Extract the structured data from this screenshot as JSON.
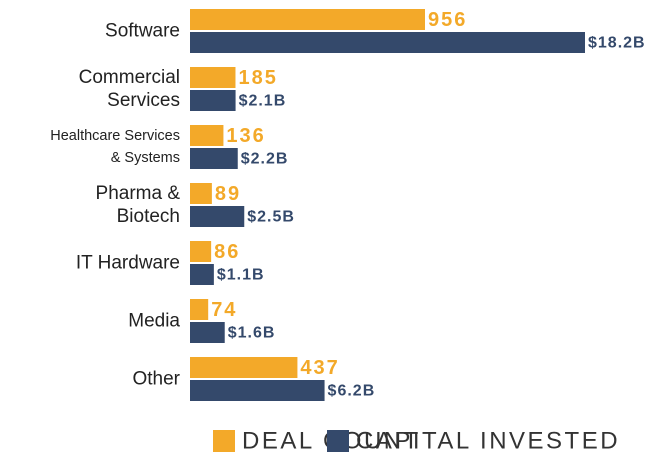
{
  "chart_data": {
    "type": "bar",
    "orientation": "horizontal",
    "categories": [
      "Software",
      "Commercial\nServices",
      "Healthcare Services\n& Systems",
      "Pharma &\nBiotech",
      "IT Hardware",
      "Media",
      "Other"
    ],
    "series": [
      {
        "name": "DEAL COUNT",
        "color": "#f3a929",
        "values": [
          956,
          185,
          136,
          89,
          86,
          74,
          437
        ]
      },
      {
        "name": "CAPITAL INVESTED",
        "color": "#34496b",
        "values": [
          18.2,
          2.1,
          2.2,
          2.5,
          1.1,
          1.6,
          6.2
        ],
        "value_labels": [
          "$18.2B",
          "$2.1B",
          "$2.2B",
          "$2.5B",
          "$1.1B",
          "$1.6B",
          "$6.2B"
        ]
      }
    ]
  }
}
